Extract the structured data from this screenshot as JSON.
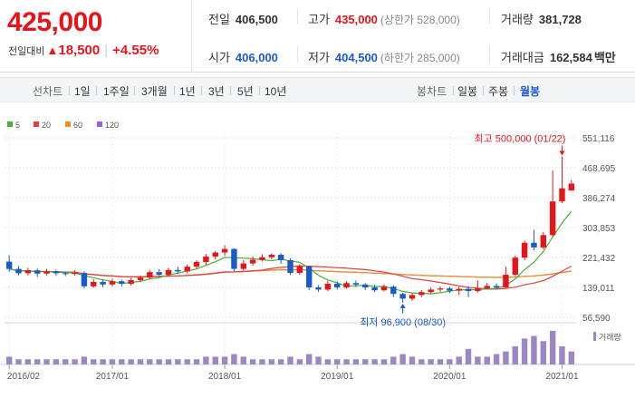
{
  "price": {
    "current": "425,000",
    "change_label": "전일대비",
    "change_arrow": "▲",
    "change_value": "18,500",
    "change_pct": "+4.55%"
  },
  "stats": {
    "prev_close": {
      "label": "전일",
      "value": "406,500"
    },
    "high": {
      "label": "고가",
      "value": "435,000",
      "sub": "(상한가 528,000)"
    },
    "volume": {
      "label": "거래량",
      "value": "381,728"
    },
    "open": {
      "label": "시가",
      "value": "406,000"
    },
    "low": {
      "label": "저가",
      "value": "404,500",
      "sub": "(하한가 285,000)"
    },
    "amount": {
      "label": "거래대금",
      "value": "162,584",
      "unit": "백만"
    }
  },
  "toolbar": {
    "line_label": "선차트",
    "line_periods": [
      "1일",
      "1주일",
      "3개월",
      "1년",
      "3년",
      "5년",
      "10년"
    ],
    "candle_label": "봉차트",
    "candle_periods": [
      "일봉",
      "주봉",
      "월봉"
    ],
    "active_candle": "월봉"
  },
  "colors": {
    "up": "#e5151b",
    "down": "#1a5bc8",
    "ma5": "#4caf3a",
    "ma20": "#e04040",
    "ma60": "#f0901e",
    "ma120": "#9a63d0",
    "volume": "#9b87c4"
  },
  "chart_data": {
    "type": "candlestick",
    "legend": [
      {
        "name": "5",
        "color": "#4caf3a"
      },
      {
        "name": "20",
        "color": "#e04040"
      },
      {
        "name": "60",
        "color": "#f0901e"
      },
      {
        "name": "120",
        "color": "#9a63d0"
      }
    ],
    "y_ticks": [
      "551,116",
      "468,695",
      "386,274",
      "303,853",
      "221,432",
      "139,011",
      "56,590"
    ],
    "ylim": [
      56590,
      551116
    ],
    "x_ticks": [
      {
        "label": "2016/02",
        "index": 0
      },
      {
        "label": "2017/01",
        "index": 11
      },
      {
        "label": "2018/01",
        "index": 23
      },
      {
        "label": "2019/01",
        "index": 35
      },
      {
        "label": "2020/01",
        "index": 47
      },
      {
        "label": "2021/01",
        "index": 59
      }
    ],
    "annotations": {
      "high": {
        "text": "최고 500,000 (01/22)",
        "index": 59,
        "value": 500000
      },
      "low": {
        "text": "최저 96,900 (08/30)",
        "index": 42,
        "value": 96900
      }
    },
    "volume_label": "거래량",
    "candles": [
      [
        210000,
        190000,
        228000,
        182000
      ],
      [
        190000,
        178000,
        198000,
        172000
      ],
      [
        178000,
        186000,
        193000,
        172000
      ],
      [
        186000,
        177000,
        191000,
        168000
      ],
      [
        177000,
        183000,
        190000,
        171000
      ],
      [
        183000,
        178000,
        187000,
        171000
      ],
      [
        178000,
        176000,
        183000,
        170000
      ],
      [
        176000,
        179000,
        186000,
        171000
      ],
      [
        179000,
        142000,
        184000,
        136000
      ],
      [
        142000,
        154000,
        161000,
        138000
      ],
      [
        154000,
        147000,
        161000,
        140000
      ],
      [
        147000,
        156000,
        163000,
        141000
      ],
      [
        156000,
        149000,
        160000,
        142000
      ],
      [
        149000,
        159000,
        165000,
        144000
      ],
      [
        159000,
        166000,
        171000,
        153000
      ],
      [
        166000,
        181000,
        186000,
        161000
      ],
      [
        181000,
        174000,
        189000,
        169000
      ],
      [
        174000,
        187000,
        193000,
        171000
      ],
      [
        187000,
        183000,
        196000,
        176000
      ],
      [
        183000,
        196000,
        202000,
        178000
      ],
      [
        196000,
        209000,
        214000,
        190000
      ],
      [
        209000,
        224000,
        231000,
        201000
      ],
      [
        224000,
        235000,
        239000,
        216000
      ],
      [
        235000,
        245000,
        255000,
        226000
      ],
      [
        245000,
        190000,
        247000,
        184000
      ],
      [
        190000,
        205000,
        214000,
        186000
      ],
      [
        205000,
        215000,
        224000,
        199000
      ],
      [
        215000,
        222000,
        230000,
        210000
      ],
      [
        222000,
        229000,
        233000,
        216000
      ],
      [
        229000,
        214000,
        233000,
        204000
      ],
      [
        214000,
        179000,
        219000,
        173000
      ],
      [
        179000,
        197000,
        203000,
        174000
      ],
      [
        197000,
        139000,
        199000,
        131000
      ],
      [
        139000,
        133000,
        145000,
        127000
      ],
      [
        133000,
        149000,
        157000,
        129000
      ],
      [
        149000,
        139000,
        156000,
        133000
      ],
      [
        139000,
        151000,
        156000,
        135000
      ],
      [
        151000,
        147000,
        158000,
        140000
      ],
      [
        147000,
        139000,
        151000,
        132000
      ],
      [
        139000,
        131000,
        146000,
        126000
      ],
      [
        131000,
        141000,
        147000,
        128000
      ],
      [
        141000,
        121000,
        145000,
        112000
      ],
      [
        121000,
        108000,
        124000,
        96900
      ],
      [
        108000,
        118000,
        124000,
        102000
      ],
      [
        118000,
        126000,
        132000,
        112000
      ],
      [
        126000,
        133000,
        139000,
        121000
      ],
      [
        133000,
        136000,
        142000,
        127000
      ],
      [
        136000,
        130000,
        141000,
        123000
      ],
      [
        130000,
        135000,
        141000,
        118000
      ],
      [
        135000,
        129000,
        142000,
        112000
      ],
      [
        129000,
        136000,
        158000,
        125000
      ],
      [
        136000,
        143000,
        152000,
        133000
      ],
      [
        143000,
        139000,
        150000,
        134000
      ],
      [
        139000,
        174000,
        196000,
        138000
      ],
      [
        174000,
        221000,
        227000,
        170000
      ],
      [
        221000,
        262000,
        268000,
        214000
      ],
      [
        262000,
        249000,
        298000,
        241000
      ],
      [
        249000,
        283000,
        292000,
        244000
      ],
      [
        283000,
        376000,
        461000,
        278000
      ],
      [
        376000,
        412000,
        500000,
        371000
      ],
      [
        406000,
        425000,
        435000,
        404500
      ]
    ],
    "volumes": [
      3,
      2,
      2,
      2,
      2,
      2,
      2,
      2,
      3,
      2,
      2,
      2,
      2,
      2,
      2,
      2,
      2,
      2,
      2,
      2,
      2,
      3,
      3,
      3,
      4,
      3,
      2,
      2,
      2,
      2,
      3,
      2,
      4,
      3,
      2,
      2,
      2,
      2,
      2,
      2,
      2,
      3,
      4,
      3,
      2,
      2,
      2,
      2,
      3,
      6,
      3,
      3,
      4,
      5,
      7,
      10,
      11,
      9,
      13,
      7,
      5
    ],
    "volume_max": 14
  }
}
